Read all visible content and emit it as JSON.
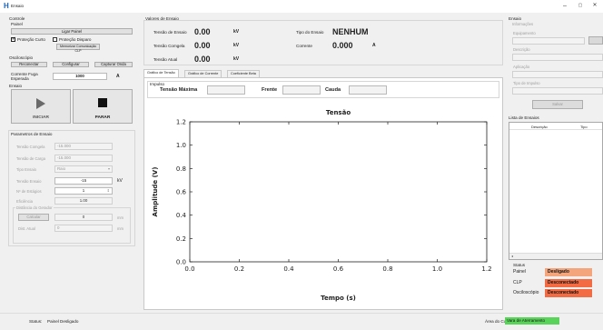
{
  "window": {
    "title": "Ensaio",
    "minimize": "–",
    "maximize": "▢",
    "close": "✕"
  },
  "controle": {
    "title": "Controle",
    "painel": {
      "title": "Painel",
      "ligar": "Ligar Painel",
      "protecao_curto": "Proteção Curto",
      "protecao_disparo": "Proteção Disparo",
      "memorizar": "Memorizar Comunicação CLP"
    },
    "osciloscopio": {
      "title": "Osciloscópio",
      "reconectar": "Reconectar",
      "configurar": "Configurar",
      "capturar": "Capturar Onda"
    },
    "corrente_fuga": {
      "label": "Corrente Fuga\nEsperada",
      "value": "1000",
      "unit": "A"
    },
    "ensaio": {
      "title": "Ensaio",
      "iniciar": "INICIAR",
      "parar": "PARAR"
    },
    "parametros": {
      "title": "Parametros de Ensaio",
      "tensao_comgela_label": "Tensão Comgela",
      "tensao_comgela_value": "-15.000",
      "tensao_carga_label": "Tensão de Carga",
      "tensao_carga_value": "-15.000",
      "tipo_ensaio_label": "Tipo Ensaio",
      "tipo_ensaio_value": "Raio",
      "tensao_ensaio_label": "Tensão Ensaio",
      "tensao_ensaio_value": "-15",
      "tensao_ensaio_unit": "kV",
      "n_estagios_label": "Nº de Estágios",
      "n_estagios_value": "1",
      "eficiencia_label": "Eficiência",
      "eficiencia_value": "1.00",
      "distancia_title": "Distância do Gerador",
      "calcular": "Calcular",
      "calc_value": "0",
      "calc_unit": "mm",
      "dist_atual_label": "Dist. Atual",
      "dist_atual_value": "0",
      "dist_atual_unit": "mm"
    }
  },
  "valores": {
    "title": "Valores de Ensaio",
    "tensao_ensaio_label": "Tensão de Ensaio",
    "tensao_ensaio_value": "0.00",
    "tensao_ensaio_unit": "kV",
    "tensao_comgela_label": "Tensão Comgela",
    "tensao_comgela_value": "0.00",
    "tensao_comgela_unit": "kV",
    "tensao_atual_label": "Tensão Atual",
    "tensao_atual_value": "0.00",
    "tensao_atual_unit": "kV",
    "tipo_ensaio_label": "Tipo do Ensaio",
    "tipo_ensaio_value": "NENHUM",
    "corrente_label": "Corrente",
    "corrente_value": "0.000",
    "corrente_unit": "A"
  },
  "tabs": [
    "Gráfico de Tensão",
    "Gráfico de Corrente",
    "Coeficiente Beta"
  ],
  "impulso": {
    "title": "Impulso",
    "tensao_maxima": "Tensão Máxima",
    "frente": "Frente",
    "cauda": "Cauda"
  },
  "chart_data": {
    "type": "line",
    "title": "Tensão",
    "xlabel": "Tempo (s)",
    "ylabel": "Amplitude (V)",
    "xlim": [
      0.0,
      1.2
    ],
    "ylim": [
      0.0,
      1.2
    ],
    "xticks": [
      "0.0",
      "0.2",
      "0.4",
      "0.6",
      "0.8",
      "1.0",
      "1.2"
    ],
    "yticks": [
      "0.0",
      "0.2",
      "0.4",
      "0.6",
      "0.8",
      "1.0",
      "1.2"
    ],
    "series": [],
    "grid": false
  },
  "ensaio_panel": {
    "title": "Ensaio",
    "informacoes": "Informações",
    "equipamento": "Equipamento",
    "descricao": "Descrição",
    "aplicacao": "Aplicação",
    "tipo_impulso": "Tipo de Impulso",
    "salvar": "Salvar",
    "lista_title": "Lista de Ensaios",
    "lista_cols": [
      "Descrição",
      "Tipo"
    ]
  },
  "status_box": {
    "title": "Status",
    "rows": [
      {
        "label": "Painel",
        "value": "Desligado",
        "color": "#f4a57c"
      },
      {
        "label": "CLP",
        "value": "Desconectado",
        "color": "#f26b43"
      },
      {
        "label": "Osciloscópio",
        "value": "Desconectado",
        "color": "#f26b43"
      }
    ]
  },
  "statusbar": {
    "status_label": "Status:",
    "status_value": "Painel Desligado",
    "cursor_label": "Área do Cursor:",
    "cursor_value": "Vara de Aterramento",
    "cursor_color": "#5ad35a"
  }
}
